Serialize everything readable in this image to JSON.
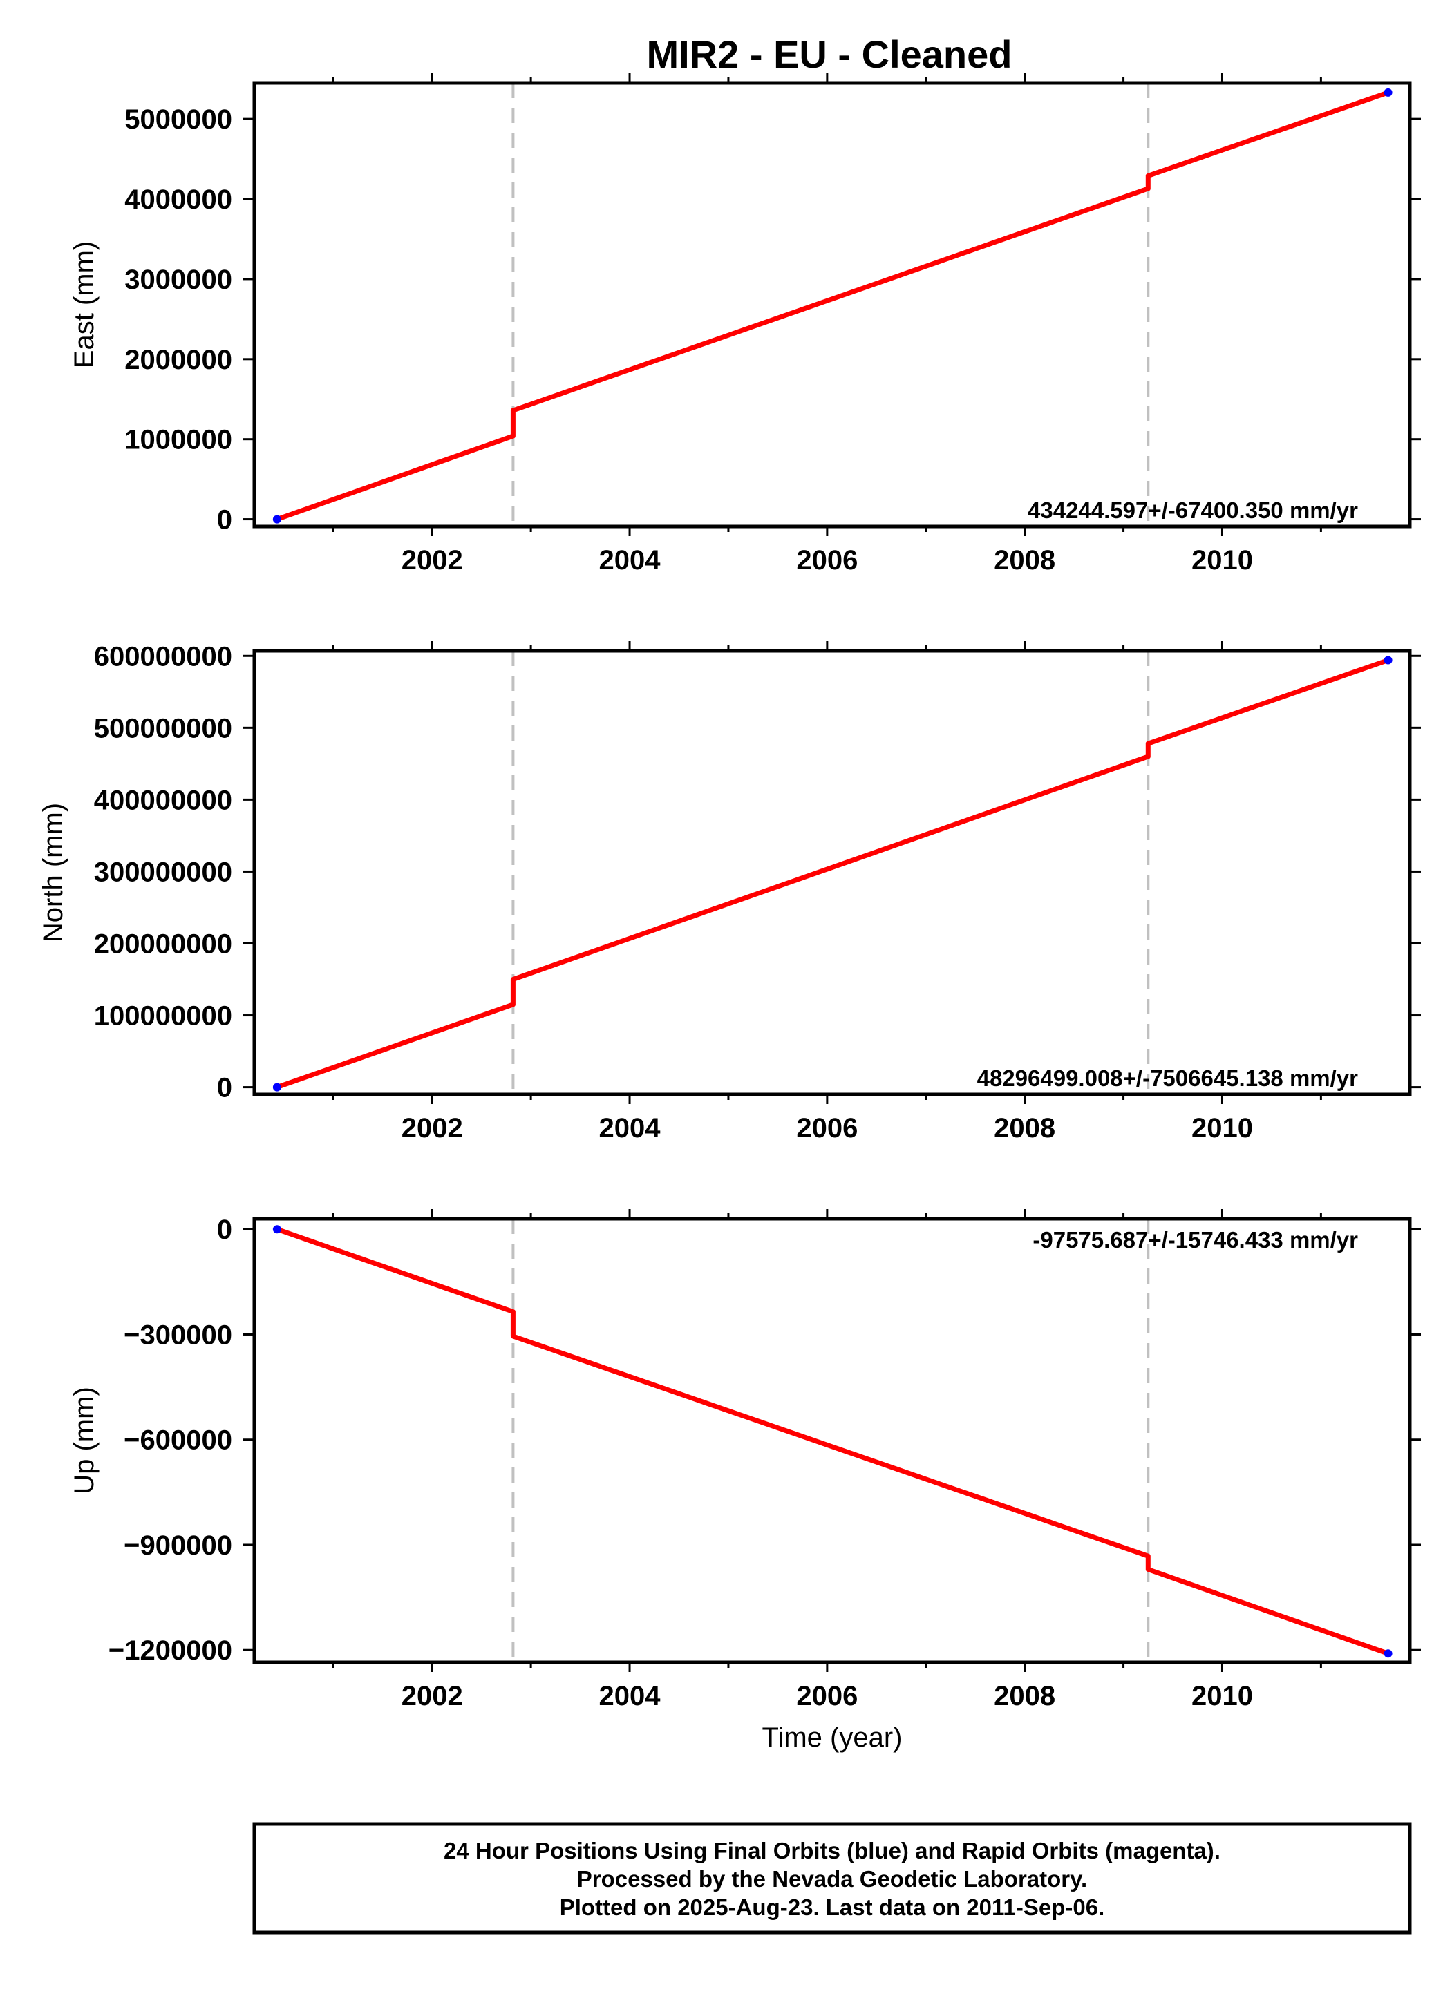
{
  "title": "MIR2  - EU - Cleaned",
  "colors": {
    "series_line": "#ff0000",
    "endpoint_dots": "#0000ff",
    "offset_lines": "#c0c0c0",
    "frame": "#000000"
  },
  "caption": {
    "line1": "24 Hour Positions Using Final Orbits (blue) and Rapid Orbits (magenta).",
    "line2": "Processed by the Nevada Geodetic Laboratory.",
    "line3": "Plotted on 2025-Aug-23. Last data on 2011-Sep-06."
  },
  "chart_data": [
    {
      "type": "line",
      "ylabel": "East (mm)",
      "xlabel": "",
      "rate_label": "434244.597+/-67400.350 mm/yr",
      "xlim": [
        2000.2,
        2011.9
      ],
      "ylim": [
        -90000,
        5450000
      ],
      "x_ticks": [
        2002,
        2004,
        2006,
        2008,
        2010
      ],
      "x_tick_labels": [
        "2002",
        "2004",
        "2006",
        "2008",
        "2010"
      ],
      "y_ticks": [
        0,
        1000000,
        2000000,
        3000000,
        4000000,
        5000000
      ],
      "y_tick_labels": [
        "0",
        "1000000",
        "2000000",
        "3000000",
        "4000000",
        "5000000"
      ],
      "offset_lines_x": [
        2002.82,
        2009.25
      ],
      "series": [
        {
          "x": [
            2000.43,
            2002.82,
            2002.82,
            2009.25,
            2009.25,
            2011.68
          ],
          "values": [
            0,
            1040000,
            1360000,
            4130000,
            4290000,
            5330000
          ]
        }
      ],
      "endpoints": {
        "x": [
          2000.43,
          2011.68
        ],
        "y": [
          0,
          5330000
        ]
      }
    },
    {
      "type": "line",
      "ylabel": "North (mm)",
      "xlabel": "",
      "rate_label": "48296499.008+/-7506645.138 mm/yr",
      "xlim": [
        2000.2,
        2011.9
      ],
      "ylim": [
        -10000000,
        607000000
      ],
      "x_ticks": [
        2002,
        2004,
        2006,
        2008,
        2010
      ],
      "x_tick_labels": [
        "2002",
        "2004",
        "2006",
        "2008",
        "2010"
      ],
      "y_ticks": [
        0,
        100000000,
        200000000,
        300000000,
        400000000,
        500000000,
        600000000
      ],
      "y_tick_labels": [
        "0",
        "100000000",
        "200000000",
        "300000000",
        "400000000",
        "500000000",
        "600000000"
      ],
      "offset_lines_x": [
        2002.82,
        2009.25
      ],
      "series": [
        {
          "x": [
            2000.43,
            2002.82,
            2002.82,
            2009.25,
            2009.25,
            2011.68
          ],
          "values": [
            0,
            115000000,
            150000000,
            460000000,
            478000000,
            594000000
          ]
        }
      ],
      "endpoints": {
        "x": [
          2000.43,
          2011.68
        ],
        "y": [
          0,
          594000000
        ]
      }
    },
    {
      "type": "line",
      "ylabel": "Up (mm)",
      "xlabel": "Time (year)",
      "rate_label": "-97575.687+/-15746.433 mm/yr",
      "xlim": [
        2000.2,
        2011.9
      ],
      "ylim": [
        -1235000,
        30000
      ],
      "x_ticks": [
        2002,
        2004,
        2006,
        2008,
        2010
      ],
      "x_tick_labels": [
        "2002",
        "2004",
        "2006",
        "2008",
        "2010"
      ],
      "y_ticks": [
        0,
        -300000,
        -600000,
        -900000,
        -1200000
      ],
      "y_tick_labels": [
        "0",
        "−300000",
        "−600000",
        "−900000",
        "−1200000"
      ],
      "offset_lines_x": [
        2002.82,
        2009.25
      ],
      "series": [
        {
          "x": [
            2000.43,
            2002.82,
            2002.82,
            2009.25,
            2009.25,
            2011.68
          ],
          "values": [
            0,
            -235000,
            -305000,
            -932000,
            -970000,
            -1210000
          ]
        }
      ],
      "endpoints": {
        "x": [
          2000.43,
          2011.68
        ],
        "y": [
          0,
          -1210000
        ]
      }
    }
  ]
}
